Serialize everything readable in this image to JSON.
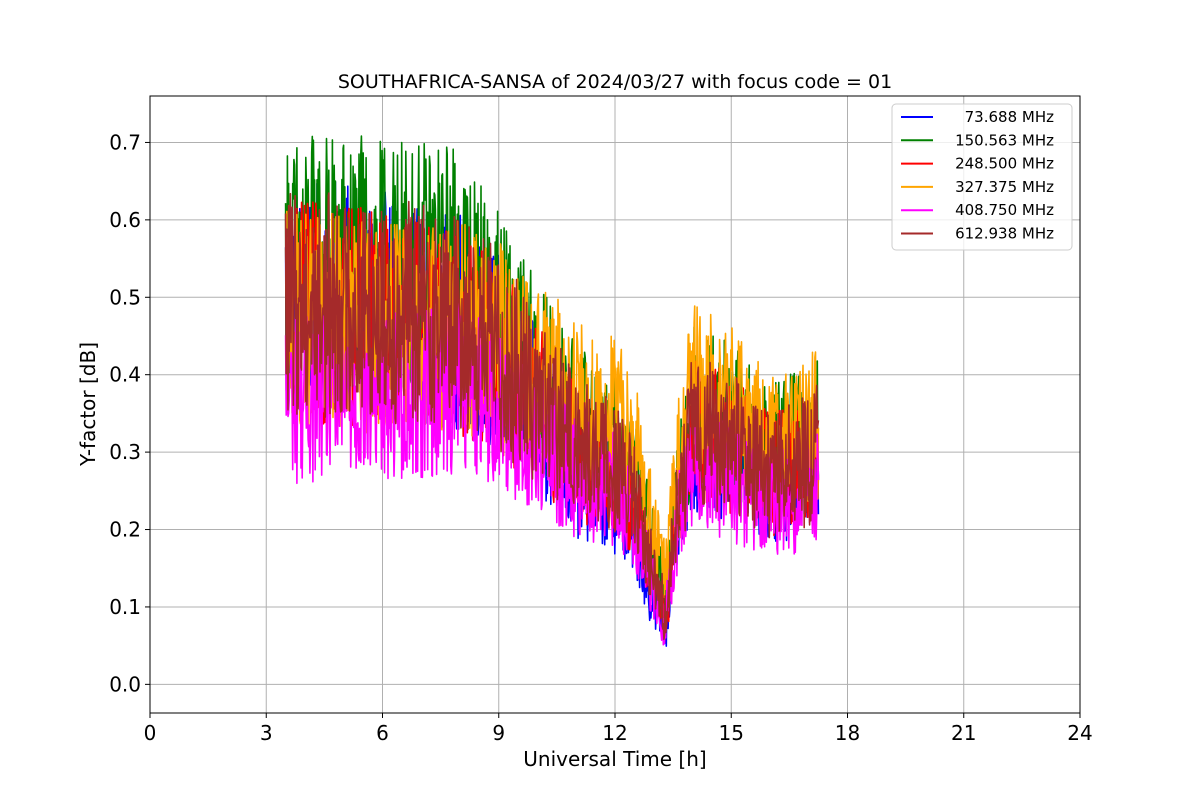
{
  "chart_data": {
    "type": "line",
    "title": "SOUTHAFRICA-SANSA of 2024/03/27 with focus code = 01",
    "xlabel": "Universal Time [h]",
    "ylabel": "Y-factor [dB]",
    "xlim": [
      0,
      24
    ],
    "ylim": [
      -0.037,
      0.76
    ],
    "x_ticks": [
      0,
      3,
      6,
      9,
      12,
      15,
      18,
      21,
      24
    ],
    "x_tick_labels": [
      "0",
      "3",
      "6",
      "9",
      "12",
      "15",
      "18",
      "21",
      "24"
    ],
    "y_ticks": [
      0.0,
      0.1,
      0.2,
      0.3,
      0.4,
      0.5,
      0.6,
      0.7
    ],
    "y_tick_labels": [
      "0.0",
      "0.1",
      "0.2",
      "0.3",
      "0.4",
      "0.5",
      "0.6",
      "0.7"
    ],
    "grid": true,
    "legend_position": "top-right",
    "series": [
      {
        "name": "73.688 MHz",
        "color": "#0000ff",
        "x": [
          3.5,
          4.0,
          5.0,
          6.0,
          7.0,
          8.0,
          9.0,
          10.0,
          11.0,
          12.0,
          12.5,
          13.0,
          13.3,
          13.6,
          14.0,
          15.0,
          16.0,
          17.0,
          17.25
        ],
        "y": [
          0.5,
          0.5,
          0.5,
          0.49,
          0.48,
          0.47,
          0.43,
          0.35,
          0.27,
          0.24,
          0.2,
          0.1,
          0.08,
          0.2,
          0.32,
          0.3,
          0.25,
          0.28,
          0.3
        ]
      },
      {
        "name": "150.563 MHz",
        "color": "#008000",
        "x": [
          3.5,
          4.0,
          5.0,
          6.0,
          7.0,
          8.0,
          9.0,
          10.0,
          11.0,
          12.0,
          12.5,
          13.0,
          13.3,
          13.6,
          14.0,
          15.0,
          16.0,
          17.0,
          17.25
        ],
        "y": [
          0.54,
          0.55,
          0.55,
          0.54,
          0.54,
          0.54,
          0.47,
          0.4,
          0.34,
          0.31,
          0.27,
          0.17,
          0.12,
          0.25,
          0.36,
          0.34,
          0.3,
          0.32,
          0.33
        ]
      },
      {
        "name": "248.500 MHz",
        "color": "#ff0000",
        "x": [
          3.5,
          4.0,
          5.0,
          6.0,
          7.0,
          8.0,
          9.0,
          10.0,
          11.0,
          12.0,
          12.5,
          13.0,
          13.3,
          13.6,
          14.0,
          15.0,
          16.0,
          17.0,
          17.25
        ],
        "y": [
          0.48,
          0.48,
          0.48,
          0.47,
          0.47,
          0.46,
          0.42,
          0.36,
          0.3,
          0.27,
          0.23,
          0.13,
          0.08,
          0.22,
          0.33,
          0.31,
          0.27,
          0.29,
          0.3
        ]
      },
      {
        "name": "327.375 MHz",
        "color": "#ffa500",
        "x": [
          3.5,
          4.0,
          5.0,
          6.0,
          7.0,
          8.0,
          9.0,
          10.0,
          11.0,
          12.0,
          12.5,
          13.0,
          13.3,
          13.6,
          14.0,
          15.0,
          16.0,
          17.0,
          17.25
        ],
        "y": [
          0.47,
          0.47,
          0.47,
          0.46,
          0.46,
          0.46,
          0.44,
          0.4,
          0.37,
          0.35,
          0.31,
          0.2,
          0.14,
          0.28,
          0.38,
          0.36,
          0.31,
          0.33,
          0.34
        ]
      },
      {
        "name": "408.750 MHz",
        "color": "#ff00ff",
        "x": [
          3.5,
          4.0,
          5.0,
          6.0,
          7.0,
          8.0,
          9.0,
          10.0,
          11.0,
          12.0,
          12.5,
          13.0,
          13.3,
          13.6,
          14.0,
          15.0,
          16.0,
          17.0,
          17.25
        ],
        "y": [
          0.37,
          0.37,
          0.37,
          0.37,
          0.38,
          0.39,
          0.36,
          0.31,
          0.27,
          0.25,
          0.21,
          0.12,
          0.08,
          0.2,
          0.29,
          0.26,
          0.23,
          0.24,
          0.25
        ]
      },
      {
        "name": "612.938 MHz",
        "color": "#a52a2a",
        "x": [
          3.5,
          4.0,
          5.0,
          6.0,
          7.0,
          8.0,
          9.0,
          10.0,
          11.0,
          12.0,
          12.5,
          13.0,
          13.3,
          13.6,
          14.0,
          15.0,
          16.0,
          17.0,
          17.25
        ],
        "y": [
          0.49,
          0.49,
          0.49,
          0.48,
          0.48,
          0.47,
          0.43,
          0.37,
          0.31,
          0.28,
          0.24,
          0.14,
          0.09,
          0.23,
          0.33,
          0.31,
          0.27,
          0.29,
          0.3
        ]
      }
    ]
  }
}
